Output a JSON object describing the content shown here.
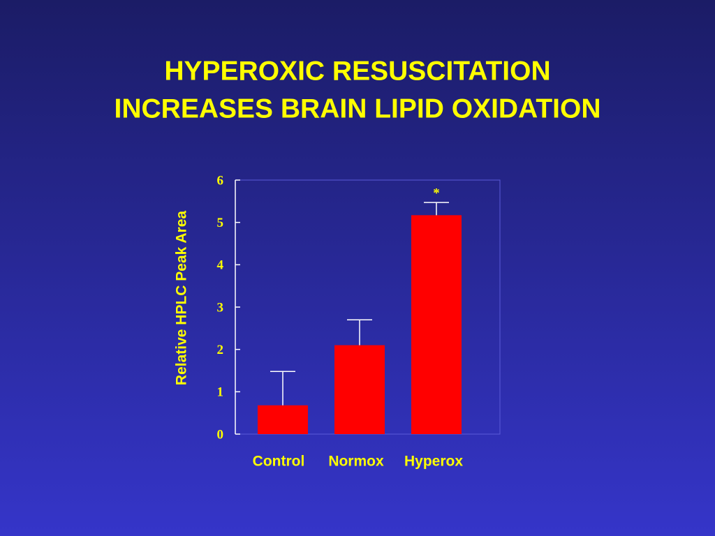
{
  "chart_data": {
    "type": "bar",
    "title": [
      "HYPEROXIC RESUSCITATION",
      "INCREASES BRAIN LIPID OXIDATION"
    ],
    "y_label": "Relative HPLC Peak Area",
    "categories": [
      "Control",
      "Normox",
      "Hyperox"
    ],
    "values": [
      0.68,
      2.1,
      5.17
    ],
    "errors": [
      0.8,
      0.6,
      0.3
    ],
    "annotation": "*",
    "annotation_category": 2,
    "color": "#ff0000",
    "ylim": [
      0,
      6
    ],
    "yticks": [
      0,
      1,
      2,
      3,
      4,
      5,
      6
    ]
  }
}
